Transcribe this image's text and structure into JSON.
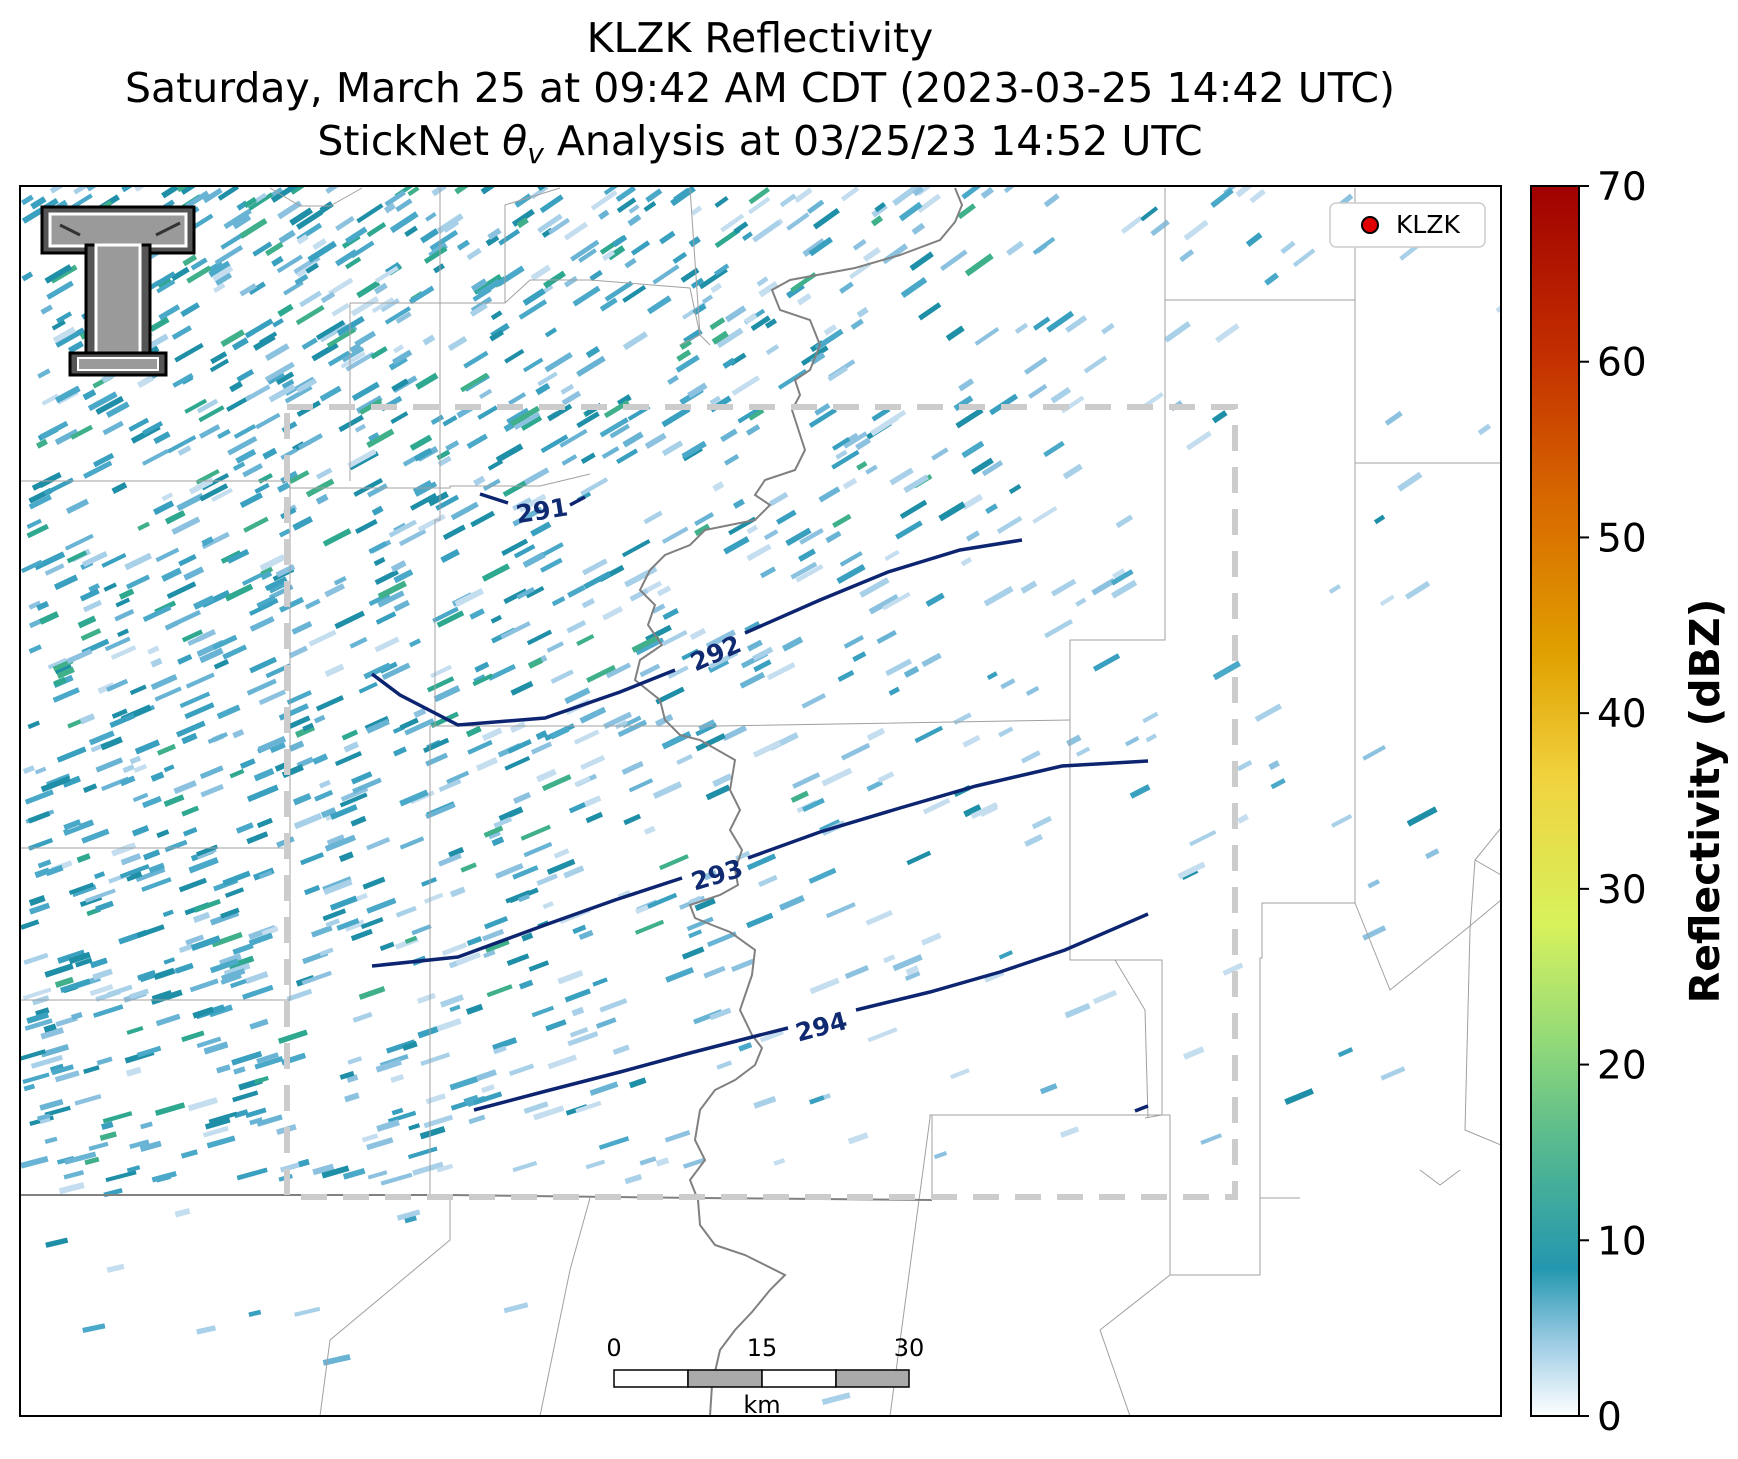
{
  "title": {
    "line1": "KLZK Reflectivity",
    "line2": "Saturday, March 25 at 09:42 AM CDT (2023-03-25 14:42 UTC)",
    "line3_prefix": "StickNet ",
    "line3_symbol": "θ",
    "line3_sub": "v",
    "line3_suffix": " Analysis at 03/25/23 14:52 UTC"
  },
  "legend": {
    "label": "KLZK",
    "marker_color": "#e00000"
  },
  "logo": {
    "name": "Texas Tech double-T logo",
    "letter": "T"
  },
  "colorbar": {
    "label": "Reflectivity (dBZ)",
    "min": 0,
    "max": 70,
    "ticks": [
      "0",
      "10",
      "20",
      "30",
      "40",
      "50",
      "60",
      "70"
    ],
    "colors": [
      "#ffffff",
      "#9ccbe4",
      "#2397b0",
      "#56b98f",
      "#8fd87a",
      "#d8f25c",
      "#f0d23e",
      "#e0a000",
      "#d86a00",
      "#c43000",
      "#a00000"
    ]
  },
  "contours": [
    {
      "label": "291",
      "value": 291
    },
    {
      "label": "292",
      "value": 292
    },
    {
      "label": "293",
      "value": 293
    },
    {
      "label": "294",
      "value": 294
    }
  ],
  "contour_color": "#0d2570",
  "scalebar": {
    "labels": [
      "0",
      "15",
      "30"
    ],
    "unit": "km"
  },
  "map_colors": {
    "border": "#808080",
    "county": "#a0a0a0",
    "domain_box": "#cccccc",
    "echo_light": "#a8d0e8",
    "echo_mid": "#3aa0c0",
    "echo_dark": "#1f8fa8",
    "echo_green": "#3fb08a"
  }
}
